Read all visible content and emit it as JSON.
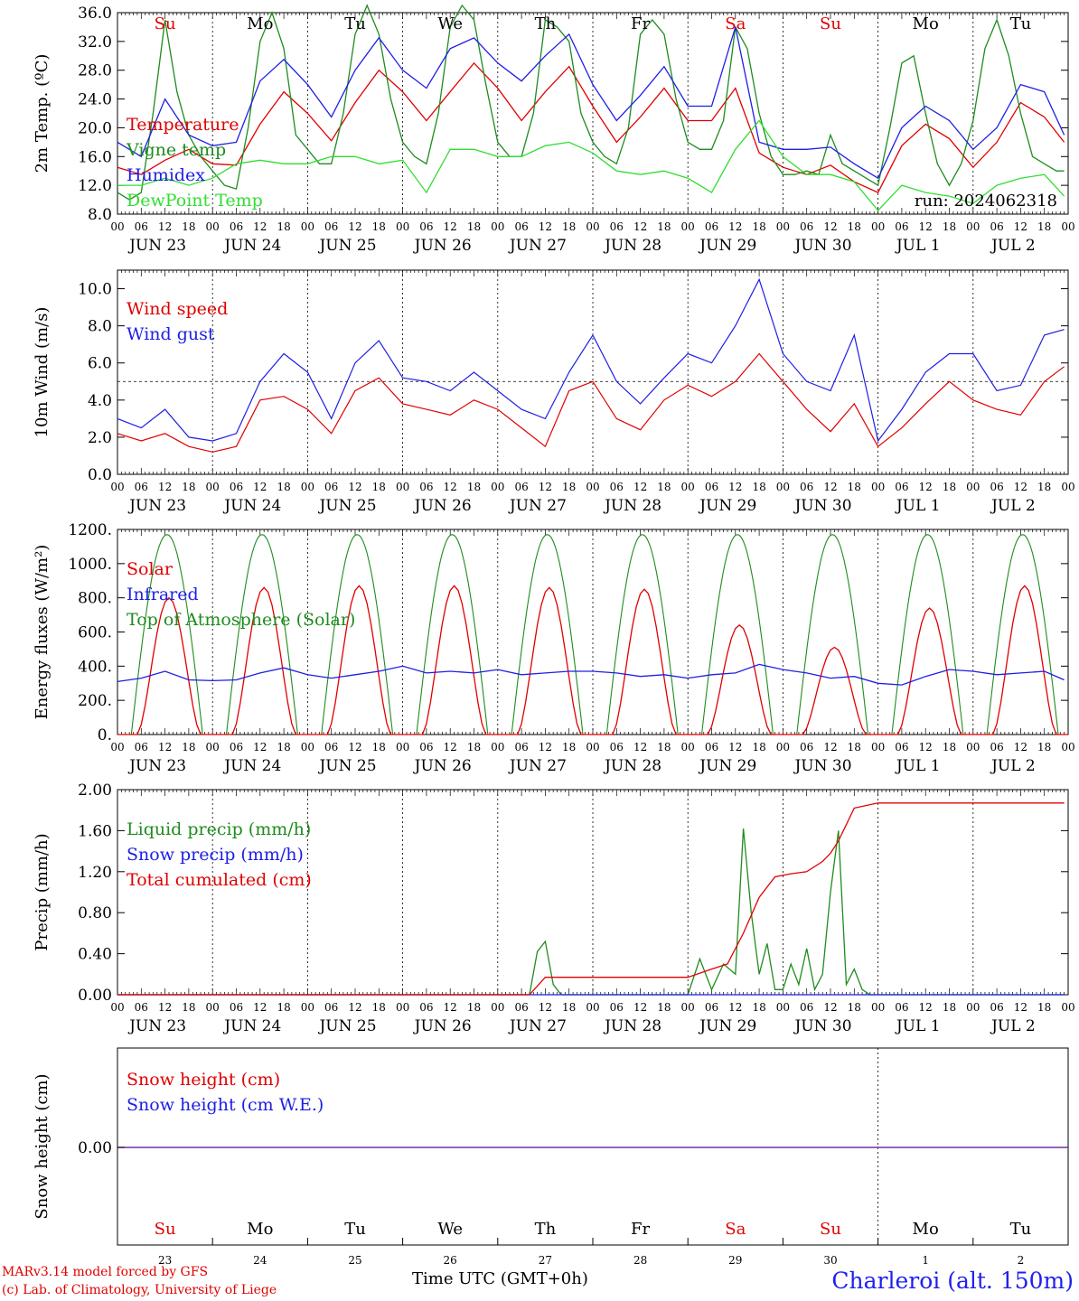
{
  "chart_data": [
    {
      "type": "line",
      "ylabel": "2m Temp. (ºC)",
      "ylim": [
        8,
        36
      ],
      "yticks": [
        "8.0",
        "12.0",
        "16.0",
        "20.0",
        "24.0",
        "28.0",
        "32.0",
        "36.0"
      ],
      "hour_labels": [
        "00",
        "06",
        "12",
        "18"
      ],
      "dates": [
        "JUN 23",
        "JUN 24",
        "JUN 25",
        "JUN 26",
        "JUN 27",
        "JUN 28",
        "JUN 29",
        "JUN 30",
        "JUL  1",
        "JUL  2"
      ],
      "weekdays": [
        "Su",
        "Mo",
        "Tu",
        "We",
        "Th",
        "Fr",
        "Sa",
        "Su",
        "Mo",
        "Tu"
      ],
      "weekday_colors": [
        "#e00000",
        "#000000",
        "#000000",
        "#000000",
        "#000000",
        "#000000",
        "#e00000",
        "#e00000",
        "#000000",
        "#000000"
      ],
      "annotation": "run: 2024062318",
      "x_unit": "hours since JUN 23 00 UTC",
      "series": [
        {
          "name": "Temperature",
          "color": "#e00000",
          "x": [
            0,
            6,
            12,
            18,
            24,
            30,
            36,
            42,
            48,
            54,
            60,
            66,
            72,
            78,
            84,
            90,
            96,
            102,
            108,
            114,
            120,
            126,
            132,
            138,
            144,
            150,
            156,
            162,
            168,
            174,
            180,
            186,
            192,
            198,
            204,
            210,
            216,
            222,
            228,
            234,
            239
          ],
          "values": [
            14.5,
            13.5,
            15.5,
            17,
            15.0,
            14.8,
            20.5,
            25.0,
            22.0,
            18.2,
            23.5,
            28.0,
            25.0,
            21.0,
            25.0,
            29.0,
            25.5,
            21.0,
            25.0,
            28.5,
            23.0,
            18.0,
            21.5,
            25.5,
            21.0,
            21.0,
            25.5,
            16.5,
            14.5,
            13.5,
            14.8,
            12.5,
            11.0,
            17.5,
            20.5,
            18.5,
            14.5,
            18.0,
            23.5,
            21.5,
            18.0
          ]
        },
        {
          "name": "Vigne temp",
          "color": "#1e8c1e",
          "x": [
            0,
            3,
            6,
            9,
            12,
            15,
            18,
            21,
            24,
            27,
            30,
            33,
            36,
            39,
            42,
            45,
            48,
            51,
            54,
            57,
            60,
            63,
            66,
            69,
            72,
            75,
            78,
            81,
            84,
            87,
            90,
            93,
            96,
            99,
            102,
            105,
            108,
            111,
            114,
            117,
            120,
            123,
            126,
            129,
            132,
            135,
            138,
            141,
            144,
            147,
            150,
            153,
            156,
            159,
            162,
            165,
            168,
            171,
            174,
            177,
            180,
            183,
            186,
            189,
            192,
            195,
            198,
            201,
            204,
            207,
            210,
            213,
            216,
            219,
            222,
            225,
            228,
            231,
            234,
            237,
            239
          ],
          "values": [
            11,
            10,
            11,
            22,
            35,
            25,
            19,
            16,
            14,
            12,
            11.5,
            20,
            32,
            36,
            31,
            19,
            17,
            15,
            15,
            22,
            33,
            37,
            33,
            24,
            18,
            16,
            15,
            22,
            34,
            37,
            35,
            26,
            18,
            16,
            16,
            22,
            35,
            34,
            32,
            22,
            18,
            16,
            15,
            20,
            33,
            35,
            33,
            24,
            18,
            17,
            17,
            21,
            34,
            31,
            22,
            16,
            13.5,
            13.5,
            14,
            13.5,
            19,
            15,
            14,
            13,
            12,
            20,
            29,
            30,
            22,
            15,
            12,
            15,
            21,
            31,
            35,
            30,
            22,
            16,
            15,
            14,
            14
          ]
        },
        {
          "name": "Humidex",
          "color": "#1e1ee6",
          "x": [
            0,
            6,
            12,
            18,
            24,
            30,
            36,
            42,
            48,
            54,
            60,
            66,
            72,
            78,
            84,
            90,
            96,
            102,
            108,
            114,
            120,
            126,
            132,
            138,
            144,
            150,
            156,
            162,
            168,
            174,
            180,
            186,
            192,
            198,
            204,
            210,
            216,
            222,
            228,
            234,
            239
          ],
          "values": [
            18,
            16,
            24,
            19,
            17.5,
            18,
            26.5,
            29.5,
            26,
            21.5,
            28,
            32.5,
            28,
            25.5,
            31,
            32.5,
            29,
            26.5,
            30,
            33,
            26,
            21,
            24.5,
            28.5,
            23,
            23,
            34,
            18,
            17.0,
            17.0,
            17.3,
            15.0,
            13.0,
            20.0,
            23.0,
            21.0,
            17.0,
            20.0,
            26.0,
            25.0,
            19
          ]
        },
        {
          "name": "DewPoint Temp",
          "color": "#33dd33",
          "x": [
            0,
            6,
            12,
            18,
            24,
            30,
            36,
            42,
            48,
            54,
            60,
            66,
            72,
            78,
            84,
            90,
            96,
            102,
            108,
            114,
            120,
            126,
            132,
            138,
            144,
            150,
            156,
            162,
            168,
            174,
            180,
            186,
            192,
            198,
            204,
            210,
            216,
            222,
            228,
            234,
            239
          ],
          "values": [
            12,
            12,
            13,
            12,
            13,
            15,
            15.5,
            15,
            15,
            16,
            16,
            15,
            15.5,
            11,
            17,
            17,
            16,
            16,
            17.5,
            18,
            16.5,
            14,
            13.5,
            14,
            13,
            11,
            17,
            21,
            16,
            13.5,
            13.5,
            12.5,
            8.5,
            12,
            11,
            10.5,
            9.5,
            12,
            13,
            13.5,
            10.5
          ]
        }
      ]
    },
    {
      "type": "line",
      "ylabel": "10m Wind (m/s)",
      "ylim": [
        0,
        11
      ],
      "yticks": [
        "0.0",
        "2.0",
        "4.0",
        "6.0",
        "8.0",
        "10.0"
      ],
      "reference_line": 5.0,
      "x_unit": "hours since JUN 23 00 UTC",
      "series": [
        {
          "name": "Wind speed",
          "color": "#e00000",
          "x": [
            0,
            6,
            12,
            18,
            24,
            30,
            36,
            42,
            48,
            54,
            60,
            66,
            72,
            78,
            84,
            90,
            96,
            102,
            108,
            114,
            120,
            126,
            132,
            138,
            144,
            150,
            156,
            162,
            168,
            174,
            180,
            186,
            192,
            198,
            204,
            210,
            216,
            222,
            228,
            234,
            239
          ],
          "values": [
            2.2,
            1.8,
            2.2,
            1.5,
            1.2,
            1.5,
            4.0,
            4.2,
            3.5,
            2.2,
            4.5,
            5.2,
            3.8,
            3.5,
            3.2,
            4.0,
            3.5,
            2.5,
            1.5,
            4.5,
            5.0,
            3.0,
            2.4,
            4.0,
            4.8,
            4.2,
            5.0,
            6.5,
            5.0,
            3.5,
            2.3,
            3.8,
            1.5,
            2.5,
            3.8,
            5.0,
            4.0,
            3.5,
            3.2,
            5.0,
            5.8
          ]
        },
        {
          "name": "Wind gust",
          "color": "#1e1ee6",
          "x": [
            0,
            6,
            12,
            18,
            24,
            30,
            36,
            42,
            48,
            54,
            60,
            66,
            72,
            78,
            84,
            90,
            96,
            102,
            108,
            114,
            120,
            126,
            132,
            138,
            144,
            150,
            156,
            162,
            168,
            174,
            180,
            186,
            192,
            198,
            204,
            210,
            216,
            222,
            228,
            234,
            239
          ],
          "values": [
            3.0,
            2.5,
            3.5,
            2.0,
            1.8,
            2.2,
            5.0,
            6.5,
            5.5,
            3.0,
            6.0,
            7.2,
            5.2,
            5.0,
            4.5,
            5.5,
            4.5,
            3.5,
            3.0,
            5.5,
            7.5,
            5.0,
            3.8,
            5.2,
            6.5,
            6.0,
            8.0,
            10.5,
            6.5,
            5.0,
            4.5,
            7.5,
            1.8,
            3.5,
            5.5,
            6.5,
            6.5,
            4.5,
            4.8,
            7.5,
            7.8
          ]
        }
      ]
    },
    {
      "type": "line",
      "ylabel": "Energy fluxes (W/m²)",
      "ylim": [
        0,
        1200
      ],
      "yticks": [
        "0.",
        "200.",
        "400.",
        "600.",
        "800.",
        "1000.",
        "1200."
      ],
      "x_unit": "hours since JUN 23 00 UTC",
      "series": [
        {
          "name": "Solar",
          "color": "#e00000",
          "daily_peak_hour": 13,
          "daily_peak_values": [
            800,
            860,
            870,
            870,
            860,
            850,
            640,
            510,
            740,
            870
          ]
        },
        {
          "name": "Infrared",
          "color": "#1e1ee6",
          "x": [
            0,
            6,
            12,
            18,
            24,
            30,
            36,
            42,
            48,
            54,
            60,
            66,
            72,
            78,
            84,
            90,
            96,
            102,
            108,
            114,
            120,
            126,
            132,
            138,
            144,
            150,
            156,
            162,
            168,
            174,
            180,
            186,
            192,
            198,
            204,
            210,
            216,
            222,
            228,
            234,
            239
          ],
          "values": [
            310,
            330,
            370,
            320,
            315,
            320,
            360,
            390,
            350,
            330,
            350,
            370,
            400,
            360,
            370,
            360,
            380,
            350,
            360,
            370,
            370,
            360,
            340,
            350,
            330,
            350,
            360,
            410,
            380,
            360,
            330,
            340,
            300,
            290,
            340,
            380,
            370,
            350,
            360,
            370,
            320
          ]
        },
        {
          "name": "Top of Atmosphere (Solar)",
          "color": "#1e8c1e",
          "daily_peak_hour": 12.5,
          "daily_peak_value": 1170,
          "sunrise_hour": 3.5,
          "sunset_hour": 21.5
        }
      ]
    },
    {
      "type": "line",
      "ylabel": "Precip (mm/h)",
      "ylim": [
        0,
        2
      ],
      "yticks": [
        "0.00",
        "0.40",
        "0.80",
        "1.20",
        "1.60",
        "2.00"
      ],
      "x_unit": "hours since JUN 23 00 UTC",
      "series": [
        {
          "name": "Liquid precip (mm/h)",
          "color": "#1e8c1e",
          "x": [
            0,
            96,
            100,
            102,
            104,
            106,
            108,
            110,
            112,
            120,
            144,
            147,
            150,
            153,
            156,
            158,
            160,
            162,
            164,
            166,
            168,
            170,
            172,
            174,
            176,
            178,
            180,
            182,
            184,
            186,
            188,
            190,
            239
          ],
          "values": [
            0,
            0,
            0,
            0,
            0,
            0.42,
            0.52,
            0.1,
            0,
            0,
            0,
            0.35,
            0.05,
            0.3,
            0.2,
            1.62,
            0.8,
            0.2,
            0.5,
            0.05,
            0.05,
            0.3,
            0.1,
            0.45,
            0.05,
            0.2,
            1.0,
            1.6,
            0.1,
            0.25,
            0.05,
            0,
            0
          ]
        },
        {
          "name": "Snow precip (mm/h)",
          "color": "#1e1ee6",
          "x": [
            0,
            239
          ],
          "values": [
            0,
            0
          ]
        },
        {
          "name": "Total cumulated (cm)",
          "color": "#e00000",
          "x": [
            0,
            96,
            104,
            108,
            112,
            120,
            144,
            150,
            154,
            158,
            162,
            166,
            170,
            174,
            178,
            180,
            182,
            186,
            192,
            200,
            239
          ],
          "values": [
            0,
            0,
            0,
            0.17,
            0.17,
            0.17,
            0.17,
            0.25,
            0.3,
            0.6,
            0.95,
            1.15,
            1.18,
            1.2,
            1.3,
            1.38,
            1.5,
            1.82,
            1.87,
            1.87,
            1.87
          ]
        }
      ]
    },
    {
      "type": "line",
      "ylabel": "Snow height (cm)",
      "yticks": [
        "0.00"
      ],
      "day_numbers": [
        "23",
        "24",
        "25",
        "26",
        "27",
        "28",
        "29",
        "30",
        "1",
        "2"
      ],
      "series": [
        {
          "name": "Snow height (cm)",
          "color": "#e00000",
          "x": [
            0,
            239
          ],
          "values": [
            0,
            0
          ]
        },
        {
          "name": "Snow height (cm W.E.)",
          "color": "#1e1ee6",
          "x": [
            0,
            239
          ],
          "values": [
            0,
            0
          ]
        }
      ]
    }
  ],
  "footer": {
    "credit_line1": "MARv3.14 model forced by GFS",
    "credit_line2": "(c) Lab. of Climatology, University of Liege",
    "xlabel": "Time UTC (GMT+0h)",
    "station": "Charleroi (alt. 150m)"
  },
  "colors": {
    "red": "#e00000",
    "green": "#1e8c1e",
    "blue": "#1e1ee6",
    "lightgreen": "#33dd33"
  }
}
